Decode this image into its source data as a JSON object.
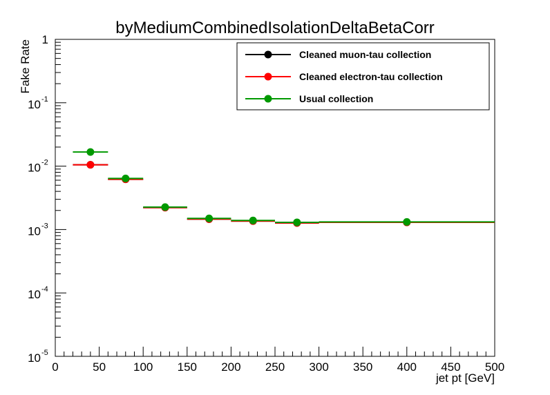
{
  "chart_data": {
    "type": "scatter",
    "title": "byMediumCombinedIsolationDeltaBetaCorr",
    "xlabel": "jet pt [GeV]",
    "ylabel": "Fake Rate",
    "xlim": [
      0,
      500
    ],
    "ylim": [
      1e-05,
      1
    ],
    "yscale": "log",
    "grid": false,
    "legend_position": "top-right",
    "x_ticks": [
      "0",
      "50",
      "100",
      "150",
      "200",
      "250",
      "300",
      "350",
      "400",
      "450",
      "500"
    ],
    "y_ticks": [
      {
        "base": "10",
        "exp": "-5"
      },
      {
        "base": "10",
        "exp": "-4"
      },
      {
        "base": "10",
        "exp": "-3"
      },
      {
        "base": "10",
        "exp": "-2"
      },
      {
        "base": "10",
        "exp": "-1"
      },
      {
        "base": "1",
        "exp": ""
      }
    ],
    "bins": [
      [
        20,
        60
      ],
      [
        60,
        100
      ],
      [
        100,
        150
      ],
      [
        150,
        200
      ],
      [
        200,
        250
      ],
      [
        250,
        300
      ],
      [
        300,
        500
      ]
    ],
    "x": [
      40,
      80,
      125,
      175,
      225,
      275,
      400
    ],
    "series": [
      {
        "name": "Cleaned muon-tau collection",
        "color": "#000000",
        "values": [
          0.0105,
          0.0062,
          0.00222,
          0.00146,
          0.00136,
          0.00127,
          0.0013
        ]
      },
      {
        "name": "Cleaned electron-tau collection",
        "color": "#ff0000",
        "values": [
          0.0105,
          0.0062,
          0.00222,
          0.00146,
          0.00136,
          0.00127,
          0.0013
        ]
      },
      {
        "name": "Usual collection",
        "color": "#009900",
        "values": [
          0.0167,
          0.0064,
          0.00226,
          0.0015,
          0.00139,
          0.0013,
          0.00132
        ]
      }
    ]
  }
}
